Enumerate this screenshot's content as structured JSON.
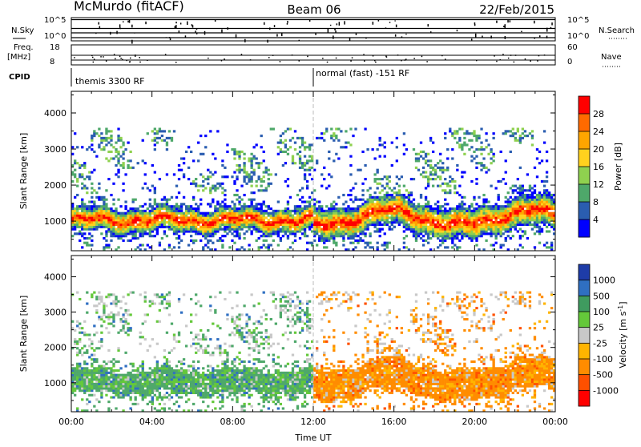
{
  "header": {
    "station": "McMurdo (fitACF)",
    "beam": "Beam 06",
    "date": "22/Feb/2015"
  },
  "status_panels": {
    "nsky": {
      "label": "N.Sky",
      "tick_top": "10^5",
      "tick_bottom": "10^0"
    },
    "nsearch": {
      "label": "N.Search",
      "tick_top": "10^5",
      "tick_bottom": "10^0"
    },
    "freq": {
      "label_line1": "Freq.",
      "label_line2": "[MHz]",
      "tick_top": "18",
      "tick_bottom": "8"
    },
    "nave": {
      "label": "Nave",
      "tick_top": "60",
      "tick_bottom": "0"
    },
    "cpid": {
      "label": "CPID",
      "segments": [
        {
          "text": "themis 3300 RF",
          "start_hour": 0
        },
        {
          "text": "normal (fast) -151 RF",
          "start_hour": 12
        }
      ]
    }
  },
  "chart_data": [
    {
      "type": "heatmap",
      "name": "power",
      "ylabel": "Slant Range [km]",
      "xlabel": "",
      "xlim": [
        0,
        24
      ],
      "ylim": [
        180,
        4600
      ],
      "yticks": [
        1000,
        2000,
        3000,
        4000
      ],
      "xticks": [
        0,
        4,
        8,
        12,
        16,
        20,
        24
      ],
      "colorbar": {
        "label": "Power [dB]",
        "ticks": [
          "28",
          "24",
          "20",
          "16",
          "12",
          "8",
          "4"
        ],
        "colors": [
          "#ff0000",
          "#ff6a00",
          "#ffa500",
          "#ffd21e",
          "#8fd14f",
          "#4ea86a",
          "#2a5db0",
          "#0000ff"
        ],
        "placement": "right"
      },
      "dominant_echo_bands": [
        {
          "hours": [
            0,
            12
          ],
          "range_km": [
            700,
            1400
          ],
          "level_db": "12-28"
        },
        {
          "hours": [
            12,
            24
          ],
          "range_km": [
            600,
            1500
          ],
          "level_db": "4-24"
        },
        {
          "hours": [
            0,
            24
          ],
          "range_km": [
            2000,
            3500
          ],
          "level_db": "4-16"
        }
      ]
    },
    {
      "type": "heatmap",
      "name": "velocity",
      "ylabel": "Slant Range [km]",
      "xlabel": "Time UT",
      "xlim": [
        0,
        24
      ],
      "ylim": [
        180,
        4600
      ],
      "yticks": [
        1000,
        2000,
        3000,
        4000
      ],
      "xticks": [
        0,
        4,
        8,
        12,
        16,
        20,
        24
      ],
      "xtick_labels": [
        "00:00",
        "04:00",
        "08:00",
        "12:00",
        "16:00",
        "20:00",
        "00:00"
      ],
      "colorbar": {
        "label": "Velocity [m s",
        "label_exponent": "-1",
        "label_tail": "]",
        "ticks": [
          "1000",
          "500",
          "100",
          "25",
          "-25",
          "-100",
          "-500",
          "-1000"
        ],
        "colors": [
          "#1e3ca8",
          "#2f6fc2",
          "#3f9b5f",
          "#64c83a",
          "#c8c8c8",
          "#ffb400",
          "#ff8c00",
          "#ff5000",
          "#ff0000"
        ],
        "placement": "right"
      },
      "dominant_echo_bands": [
        {
          "hours": [
            0,
            12
          ],
          "range_km": [
            600,
            1700
          ],
          "velocity": "100 to 500 (green)"
        },
        {
          "hours": [
            12,
            24
          ],
          "range_km": [
            500,
            2000
          ],
          "velocity": "-100 to -500 (orange)"
        }
      ]
    }
  ]
}
